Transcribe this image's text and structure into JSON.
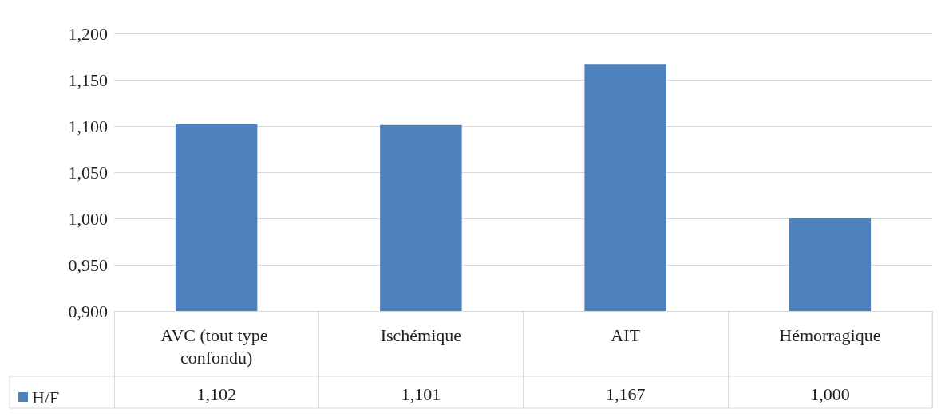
{
  "chart_data": {
    "type": "bar",
    "categories": [
      "AVC (tout type confondu)",
      "Ischémique",
      "AIT",
      "Hémorragique"
    ],
    "series": [
      {
        "name": "H/F",
        "color": "#4f81bd",
        "values": [
          1.102,
          1.101,
          1.167,
          1.0
        ],
        "value_labels": [
          "1,102",
          "1,101",
          "1,167",
          "1,000"
        ]
      }
    ],
    "ylim": [
      0.9,
      1.2
    ],
    "yticks": [
      {
        "value": 0.9,
        "label": "0,900"
      },
      {
        "value": 0.95,
        "label": "0,950"
      },
      {
        "value": 1.0,
        "label": "1,000"
      },
      {
        "value": 1.05,
        "label": "1,050"
      },
      {
        "value": 1.1,
        "label": "1,100"
      },
      {
        "value": 1.15,
        "label": "1,150"
      },
      {
        "value": 1.2,
        "label": "1,200"
      }
    ],
    "grid": "y",
    "legend": "bottom left"
  }
}
